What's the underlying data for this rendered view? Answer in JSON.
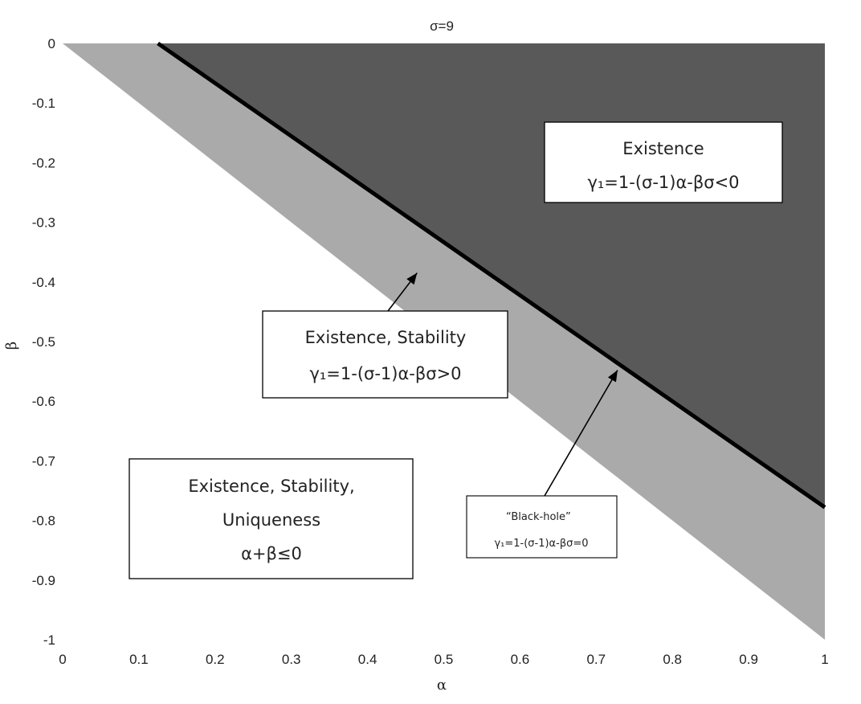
{
  "chart_data": {
    "type": "area",
    "title": "σ=9",
    "xlabel": "α",
    "ylabel": "β",
    "xlim": [
      0,
      1
    ],
    "ylim": [
      -1,
      0
    ],
    "x_ticks": [
      "0",
      "0.1",
      "0.2",
      "0.3",
      "0.4",
      "0.5",
      "0.6",
      "0.7",
      "0.8",
      "0.9",
      "1"
    ],
    "y_ticks": [
      "0",
      "-0.1",
      "-0.2",
      "-0.3",
      "-0.4",
      "-0.5",
      "-0.6",
      "-0.7",
      "-0.8",
      "-0.9",
      "-1"
    ],
    "sigma": 9,
    "regions": [
      {
        "name": "Existence, Stability, Uniqueness",
        "condition": "α+β≤0",
        "color": "#ffffff",
        "boundary": "β = -α"
      },
      {
        "name": "Existence, Stability",
        "condition": "γ₁=1-(σ-1)α-βσ>0",
        "color": "#aaaaaa",
        "boundary": "β = (1-(σ-1)α)/σ"
      },
      {
        "name": "Existence",
        "condition": "γ₁=1-(σ-1)α-βσ<0",
        "color": "#595959"
      }
    ],
    "black_hole_line": {
      "label": "“Black-hole”",
      "equation": "γ₁=1-(σ-1)α-βσ=0",
      "x": [
        0.125,
        1
      ],
      "y": [
        0,
        -0.778
      ],
      "color": "#000000"
    },
    "upper_line": {
      "x": [
        0,
        1
      ],
      "y": [
        0,
        -1
      ]
    },
    "annotations": {
      "existence": {
        "line1": "Existence",
        "line2": "γ₁=1-(σ-1)α-βσ<0"
      },
      "stability": {
        "line1": "Existence, Stability",
        "line2": "γ₁=1-(σ-1)α-βσ>0",
        "arrow_to": [
          0.465,
          -0.385
        ]
      },
      "uniqueness": {
        "line1": "Existence, Stability,",
        "line2": "Uniqueness",
        "line3": "α+β≤0"
      },
      "blackhole": {
        "line1": "“Black-hole”",
        "line2": "γ₁=1-(σ-1)α-βσ=0",
        "arrow_to": [
          0.728,
          -0.548
        ]
      }
    }
  }
}
